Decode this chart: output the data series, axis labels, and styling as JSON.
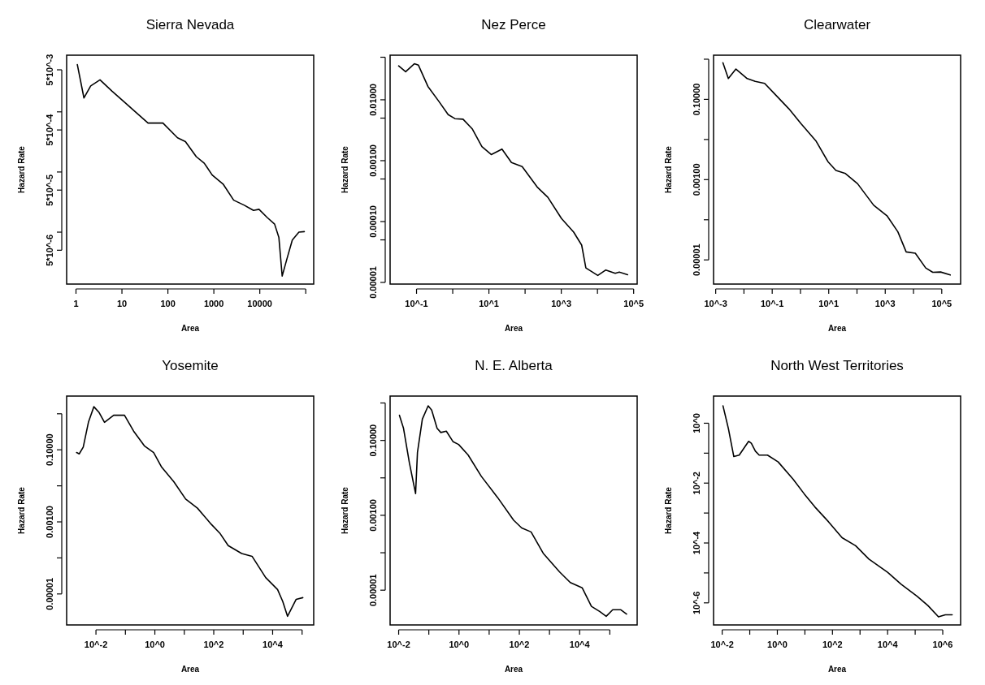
{
  "chart_data": [
    {
      "type": "line",
      "title": "Sierra Nevada",
      "xlabel": "Area",
      "ylabel": "Hazard Rate",
      "log": "xy",
      "grid": false,
      "color": "#000000",
      "x": [
        1.07,
        1.49,
        2.09,
        3.33,
        6.1,
        11.1,
        21.8,
        37,
        78,
        162,
        241,
        414,
        619,
        920,
        1590,
        2700,
        4600,
        7300,
        9600,
        14500,
        21000,
        26000,
        30700,
        39000,
        51000,
        71000,
        93000
      ],
      "values": [
        0.0061,
        0.0017,
        0.0027,
        0.0034,
        0.0022,
        0.00147,
        0.00093,
        0.00065,
        0.00065,
        0.00037,
        0.00032,
        0.00018,
        0.00014,
        8.9e-05,
        6.3e-05,
        3.4e-05,
        2.8e-05,
        2.3e-05,
        2.4e-05,
        1.75e-05,
        1.36e-05,
        8.2e-06,
        1.86e-06,
        3.6e-06,
        7.4e-06,
        1e-05,
        1.02e-05
      ],
      "xlim": [
        0.626,
        149000
      ],
      "ylim": [
        1.37e-06,
        0.00875
      ],
      "xticks": [
        1,
        10,
        100,
        1000,
        10000,
        {
          "value": 100000,
          "label": null
        }
      ],
      "yticks": [
        {
          "value": 0.005,
          "label": "5*10^-3"
        },
        {
          "value": 0.001,
          "label": null
        },
        {
          "value": 0.0005,
          "label": "5*10^-4"
        },
        {
          "value": 0.0001,
          "label": null
        },
        {
          "value": 5e-05,
          "label": "5*10^-5"
        },
        {
          "value": 1e-05,
          "label": null
        },
        {
          "value": 5e-06,
          "label": "5*10^-6"
        }
      ]
    },
    {
      "type": "line",
      "title": "Nez Perce",
      "xlabel": "Area",
      "ylabel": "Hazard Rate",
      "log": "xy",
      "grid": false,
      "color": "#000000",
      "x": [
        0.032,
        0.05,
        0.087,
        0.113,
        0.206,
        0.41,
        0.75,
        1.15,
        1.93,
        3.5,
        6.4,
        11.6,
        23,
        42,
        83,
        215,
        426,
        1015,
        2200,
        3660,
        4780,
        10200,
        17000,
        31000,
        40000,
        68000
      ],
      "values": [
        0.036,
        0.0289,
        0.039,
        0.037,
        0.0166,
        0.0095,
        0.0057,
        0.0049,
        0.0048,
        0.0033,
        0.0017,
        0.00126,
        0.00155,
        0.00093,
        0.0008,
        0.00037,
        0.00025,
        0.000112,
        6.7e-05,
        4.1e-05,
        1.73e-05,
        1.3e-05,
        1.6e-05,
        1.41e-05,
        1.48e-05,
        1.34e-05
      ],
      "xlim": [
        0.0186,
        125000
      ],
      "ylim": [
        9.4e-06,
        0.054
      ],
      "xticks": [
        {
          "value": 0.1,
          "label": "10^-1"
        },
        {
          "value": 1,
          "label": null
        },
        {
          "value": 10,
          "label": "10^1"
        },
        {
          "value": 100,
          "label": null
        },
        {
          "value": 1000,
          "label": "10^3"
        },
        {
          "value": 10000,
          "label": null
        },
        {
          "value": 100000,
          "label": "10^5"
        }
      ],
      "yticks": [
        {
          "value": 0.05,
          "label": null
        },
        {
          "value": 0.01,
          "label": "0.01000"
        },
        {
          "value": 0.005,
          "label": null
        },
        {
          "value": 0.001,
          "label": "0.00100"
        },
        {
          "value": 0.0005,
          "label": null
        },
        {
          "value": 0.0001,
          "label": "0.00010"
        },
        {
          "value": 5e-05,
          "label": null
        },
        {
          "value": 1e-05,
          "label": "0.00001"
        }
      ]
    },
    {
      "type": "line",
      "title": "Clearwater",
      "xlabel": "Area",
      "ylabel": "Hazard Rate",
      "log": "xy",
      "grid": false,
      "color": "#000000",
      "x": [
        0.0018,
        0.0028,
        0.0052,
        0.013,
        0.025,
        0.054,
        0.116,
        0.39,
        1.04,
        3.5,
        9.4,
        18,
        39,
        105,
        390,
        1150,
        2800,
        5500,
        11600,
        27000,
        48000,
        91000,
        200000
      ],
      "values": [
        0.82,
        0.33,
        0.57,
        0.33,
        0.28,
        0.25,
        0.142,
        0.058,
        0.025,
        0.0093,
        0.0028,
        0.0017,
        0.00142,
        0.00079,
        0.00023,
        0.000126,
        5e-05,
        1.58e-05,
        1.47e-05,
        6.3e-06,
        4.9e-06,
        5e-06,
        4.2e-06
      ],
      "xlim": [
        0.00084,
        465000
      ],
      "ylim": [
        2.5e-06,
        1.26
      ],
      "xticks": [
        {
          "value": 0.001,
          "label": "10^-3"
        },
        {
          "value": 0.01,
          "label": null
        },
        {
          "value": 0.1,
          "label": "10^-1"
        },
        {
          "value": 1,
          "label": null
        },
        {
          "value": 10,
          "label": "10^1"
        },
        {
          "value": 100,
          "label": null
        },
        {
          "value": 1000,
          "label": "10^3"
        },
        {
          "value": 10000,
          "label": null
        },
        {
          "value": 100000,
          "label": "10^5"
        }
      ],
      "yticks": [
        {
          "value": 1,
          "label": null
        },
        {
          "value": 0.1,
          "label": "0.10000"
        },
        {
          "value": 0.01,
          "label": null
        },
        {
          "value": 0.001,
          "label": "0.00100"
        },
        {
          "value": 0.0001,
          "label": null
        },
        {
          "value": 1e-05,
          "label": "0.00001"
        }
      ]
    },
    {
      "type": "line",
      "title": "Yosemite",
      "xlabel": "Area",
      "ylabel": "Hazard Rate",
      "log": "xy",
      "grid": false,
      "color": "#000000",
      "x": [
        0.0022,
        0.0027,
        0.0037,
        0.0056,
        0.0085,
        0.0128,
        0.0195,
        0.04,
        0.093,
        0.19,
        0.44,
        0.91,
        1.7,
        4.4,
        11.1,
        28,
        82,
        166,
        310,
        890,
        2000,
        5800,
        14700,
        22000,
        32000,
        63000,
        106000
      ],
      "values": [
        0.084,
        0.077,
        0.119,
        0.6,
        1.57,
        1.08,
        0.58,
        0.91,
        0.91,
        0.33,
        0.129,
        0.084,
        0.033,
        0.013,
        0.0043,
        0.0024,
        0.00086,
        0.00047,
        0.00022,
        0.000132,
        0.000111,
        2.85e-05,
        1.33e-05,
        6.2e-06,
        2.4e-06,
        7.1e-06,
        7.9e-06
      ],
      "xlim": [
        0.00101,
        248000
      ],
      "ylim": [
        1.38e-06,
        3.1
      ],
      "xticks": [
        {
          "value": 0.01,
          "label": "10^-2"
        },
        {
          "value": 0.1,
          "label": null
        },
        {
          "value": 1,
          "label": "10^0"
        },
        {
          "value": 10,
          "label": null
        },
        {
          "value": 100,
          "label": "10^2"
        },
        {
          "value": 1000,
          "label": null
        },
        {
          "value": 10000,
          "label": "10^4"
        },
        {
          "value": 100000,
          "label": null
        }
      ],
      "yticks": [
        {
          "value": 1,
          "label": null
        },
        {
          "value": 0.1,
          "label": "0.10000"
        },
        {
          "value": 0.01,
          "label": null
        },
        {
          "value": 0.001,
          "label": "0.00100"
        },
        {
          "value": 0.0001,
          "label": null
        },
        {
          "value": 1e-05,
          "label": "0.00001"
        }
      ]
    },
    {
      "type": "line",
      "title": "N. E. Alberta",
      "xlabel": "Area",
      "ylabel": "Hazard Rate",
      "log": "xy",
      "grid": false,
      "color": "#000000",
      "x": [
        0.0106,
        0.0145,
        0.0227,
        0.0364,
        0.042,
        0.061,
        0.095,
        0.124,
        0.188,
        0.25,
        0.38,
        0.64,
        0.97,
        2.0,
        5.5,
        19,
        65,
        120,
        245,
        620,
        2140,
        4900,
        12100,
        24600,
        46000,
        76000,
        125000,
        232000,
        360000
      ],
      "values": [
        0.47,
        0.21,
        0.025,
        0.0038,
        0.048,
        0.37,
        0.84,
        0.65,
        0.21,
        0.163,
        0.177,
        0.092,
        0.078,
        0.041,
        0.011,
        0.003,
        0.00074,
        0.00046,
        0.00036,
        9.7e-05,
        3.1e-05,
        1.6e-05,
        1.16e-05,
        3.7e-06,
        2.7e-06,
        2e-06,
        3e-06,
        3e-06,
        2.3e-06
      ],
      "xlim": [
        0.0052,
        807000
      ],
      "ylim": [
        1.18e-06,
        1.53
      ],
      "xticks": [
        {
          "value": 0.01,
          "label": "10^-2"
        },
        {
          "value": 0.1,
          "label": null
        },
        {
          "value": 1,
          "label": "10^0"
        },
        {
          "value": 10,
          "label": null
        },
        {
          "value": 100,
          "label": "10^2"
        },
        {
          "value": 1000,
          "label": null
        },
        {
          "value": 10000,
          "label": "10^4"
        },
        {
          "value": 100000,
          "label": null
        }
      ],
      "yticks": [
        {
          "value": 1,
          "label": null
        },
        {
          "value": 0.1,
          "label": "0.10000"
        },
        {
          "value": 0.01,
          "label": null
        },
        {
          "value": 0.001,
          "label": "0.00100"
        },
        {
          "value": 0.0001,
          "label": null
        },
        {
          "value": 1e-05,
          "label": "0.00001"
        }
      ]
    },
    {
      "type": "line",
      "title": "North West Territories",
      "xlabel": "Area",
      "ylabel": "Hazard Rate",
      "log": "xy",
      "grid": false,
      "color": "#000000",
      "x": [
        0.0107,
        0.0168,
        0.0264,
        0.0414,
        0.065,
        0.091,
        0.114,
        0.16,
        0.22,
        0.44,
        1.07,
        3.7,
        9.4,
        23,
        72,
        223,
        690,
        2100,
        10000,
        31000,
        117000,
        290000,
        700000,
        1240000,
        2200000
      ],
      "values": [
        3.8,
        0.66,
        0.077,
        0.086,
        0.158,
        0.249,
        0.215,
        0.117,
        0.086,
        0.086,
        0.051,
        0.0136,
        0.0044,
        0.0016,
        0.00051,
        0.00015,
        8.1e-05,
        2.9e-05,
        1.05e-05,
        4.2e-06,
        1.67e-06,
        8.1e-07,
        3.4e-07,
        4e-07,
        4e-07
      ],
      "xlim": [
        0.00486,
        4450000
      ],
      "ylim": [
        1.83e-07,
        8.07
      ],
      "xticks": [
        {
          "value": 0.01,
          "label": "10^-2"
        },
        {
          "value": 0.1,
          "label": null
        },
        {
          "value": 1,
          "label": "10^0"
        },
        {
          "value": 10,
          "label": null
        },
        {
          "value": 100,
          "label": "10^2"
        },
        {
          "value": 1000,
          "label": null
        },
        {
          "value": 10000,
          "label": "10^4"
        },
        {
          "value": 100000,
          "label": null
        },
        {
          "value": 1000000,
          "label": "10^6"
        }
      ],
      "yticks": [
        {
          "value": 1,
          "label": "10^0"
        },
        {
          "value": 0.1,
          "label": null
        },
        {
          "value": 0.01,
          "label": "10^-2"
        },
        {
          "value": 0.001,
          "label": null
        },
        {
          "value": 0.0001,
          "label": "10^-4"
        },
        {
          "value": 1e-05,
          "label": null
        },
        {
          "value": 1e-06,
          "label": "10^-6"
        }
      ]
    }
  ]
}
